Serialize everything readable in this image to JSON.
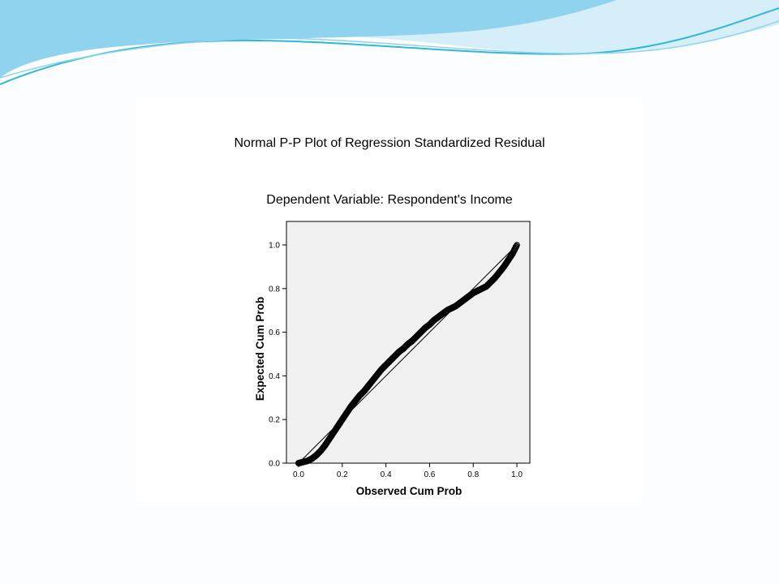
{
  "colors": {
    "wave_light": "#d6eef9",
    "wave_mid": "#8fd3ee",
    "wave_dark": "#2fb7d9",
    "plot_bg": "#f0f0f0",
    "marker": "#000000"
  },
  "chart_data": {
    "type": "scatter",
    "title": "Normal P-P Plot of Regression Standardized Residual",
    "subtitle": "Dependent Variable: Respondent's Income",
    "xlabel": "Observed Cum Prob",
    "ylabel": "Expected Cum Prob",
    "xlim": [
      0.0,
      1.0
    ],
    "ylim": [
      0.0,
      1.0
    ],
    "x_ticks": [
      "0.0",
      "0.2",
      "0.4",
      "0.6",
      "0.8",
      "1.0"
    ],
    "y_ticks": [
      "0.0",
      "0.2",
      "0.4",
      "0.6",
      "0.8",
      "1.0"
    ],
    "grid": false,
    "reference_line": [
      [
        0.0,
        0.0
      ],
      [
        1.0,
        1.0
      ]
    ],
    "curve_points": {
      "x": [
        0.0,
        0.02,
        0.04,
        0.06,
        0.08,
        0.1,
        0.12,
        0.14,
        0.16,
        0.18,
        0.2,
        0.22,
        0.24,
        0.26,
        0.28,
        0.3,
        0.32,
        0.34,
        0.36,
        0.38,
        0.4,
        0.42,
        0.44,
        0.46,
        0.48,
        0.5,
        0.52,
        0.54,
        0.56,
        0.58,
        0.6,
        0.62,
        0.64,
        0.66,
        0.68,
        0.7,
        0.72,
        0.74,
        0.76,
        0.78,
        0.8,
        0.82,
        0.84,
        0.86,
        0.88,
        0.9,
        0.92,
        0.94,
        0.96,
        0.98,
        1.0
      ],
      "y": [
        0.0,
        0.005,
        0.01,
        0.02,
        0.035,
        0.055,
        0.08,
        0.11,
        0.14,
        0.17,
        0.2,
        0.23,
        0.26,
        0.285,
        0.31,
        0.33,
        0.355,
        0.38,
        0.405,
        0.43,
        0.45,
        0.47,
        0.49,
        0.51,
        0.525,
        0.545,
        0.56,
        0.58,
        0.6,
        0.62,
        0.635,
        0.655,
        0.67,
        0.685,
        0.7,
        0.71,
        0.72,
        0.735,
        0.75,
        0.765,
        0.78,
        0.79,
        0.8,
        0.81,
        0.83,
        0.85,
        0.875,
        0.9,
        0.93,
        0.96,
        1.0
      ]
    }
  }
}
